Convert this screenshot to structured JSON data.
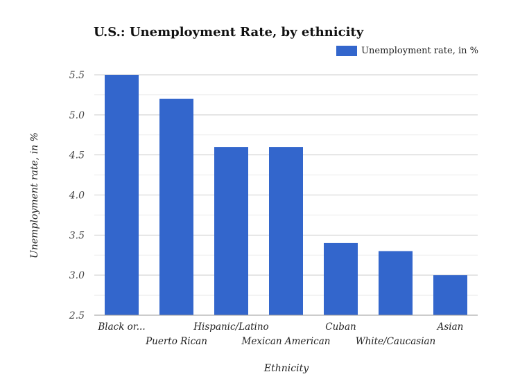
{
  "chart_data": {
    "type": "bar",
    "title": "U.S.: Unemployment Rate, by ethnicity",
    "xlabel": "Ethnicity",
    "ylabel": "Unemployment rate, in %",
    "categories": [
      "Black or...",
      "Puerto Rican",
      "Hispanic/Latino",
      "Mexican American",
      "Cuban",
      "White/Caucasian",
      "Asian"
    ],
    "series": [
      {
        "name": "Unemployment rate, in %",
        "values": [
          5.5,
          5.2,
          4.6,
          4.6,
          3.4,
          3.3,
          3.0
        ],
        "color": "#3366cc"
      }
    ],
    "ylim": [
      2.5,
      5.5
    ],
    "yticks": [
      "2.5",
      "3.0",
      "3.5",
      "4.0",
      "4.5",
      "5.0",
      "5.5"
    ],
    "grid": true,
    "legend": "top-right"
  }
}
